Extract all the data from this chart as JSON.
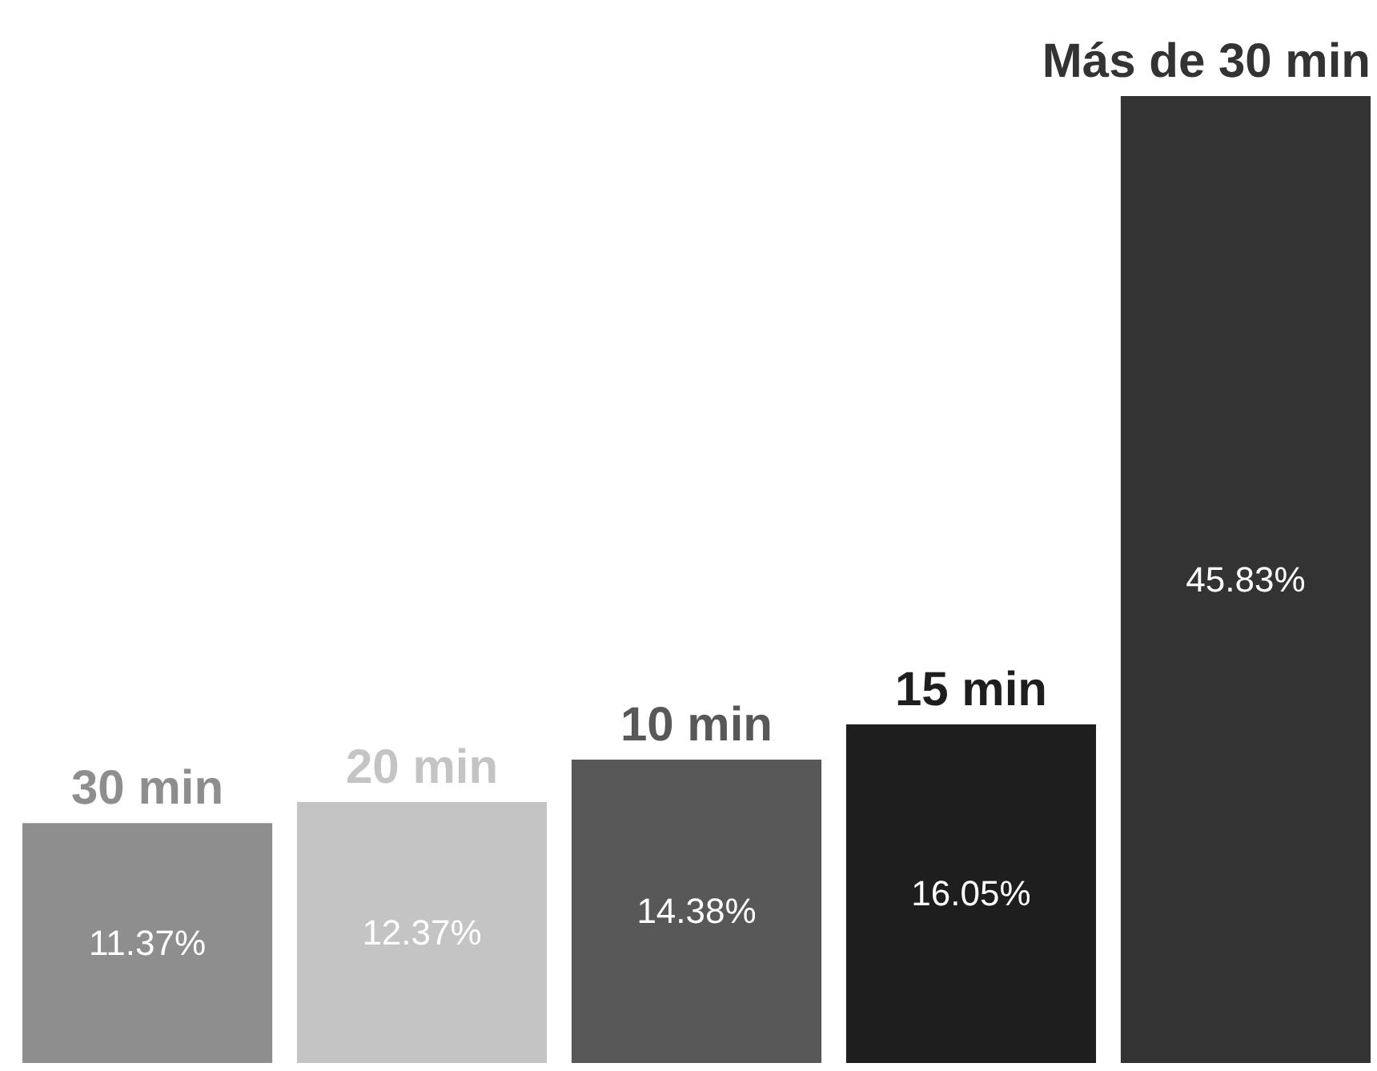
{
  "chart_data": {
    "type": "bar",
    "categories": [
      "30 min",
      "20 min",
      "10 min",
      "15 min",
      "Más de 30 min"
    ],
    "values": [
      11.37,
      12.37,
      14.38,
      16.05,
      45.83
    ],
    "colors": [
      "#8e8e8e",
      "#c4c4c4",
      "#585858",
      "#1e1e1e",
      "#333333"
    ],
    "value_labels": [
      "11.37%",
      "12.37%",
      "14.38%",
      "16.05%",
      "45.83%"
    ]
  }
}
